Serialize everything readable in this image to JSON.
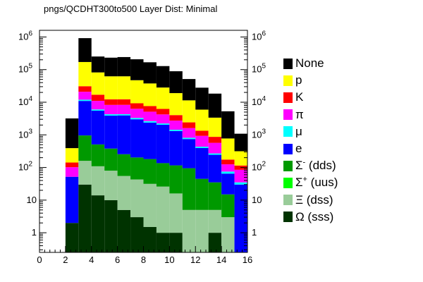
{
  "chart_data": {
    "type": "bar",
    "stacked": true,
    "title": "pngs/QCDHT300to500 Layer Dist: Minimal",
    "xlabel": "",
    "ylabel": "",
    "xlim": [
      0,
      16
    ],
    "ylim": [
      0.25,
      1600000
    ],
    "y_scale": "log",
    "bin_edges": [
      0,
      1,
      2,
      3,
      4,
      5,
      6,
      7,
      8,
      9,
      10,
      11,
      12,
      13,
      14,
      15,
      16
    ],
    "x_ticks": [
      "0",
      "2",
      "4",
      "6",
      "8",
      "10",
      "12",
      "14",
      "16"
    ],
    "y_ticks": [
      "1",
      "10",
      "10^2",
      "10^3",
      "10^4",
      "10^5",
      "10^6"
    ],
    "legend_position": "right",
    "series": [
      {
        "name": "Ω (sss)",
        "label_main": "Ω (sss)",
        "label_sup": "",
        "label_rest": "",
        "color": "#003300",
        "values": [
          0,
          0,
          2,
          30,
          14,
          10,
          5,
          3,
          1.5,
          1,
          1,
          0,
          0,
          1,
          0,
          0
        ]
      },
      {
        "name": "Ξ (dss)",
        "label_main": "Ξ (dss)",
        "label_sup": "",
        "label_rest": "",
        "color": "#99cc99",
        "values": [
          0,
          0,
          0,
          130,
          95,
          70,
          50,
          40,
          30,
          25,
          15,
          5,
          5,
          4,
          3,
          0
        ]
      },
      {
        "name": "Σ+ (uus)",
        "label_main": "Σ",
        "label_sup": "+",
        "label_rest": " (uus)",
        "color": "#00ff00",
        "values": [
          0,
          0,
          0,
          0,
          0,
          0,
          0,
          0,
          0,
          0,
          0,
          0,
          0,
          0,
          0,
          0
        ]
      },
      {
        "name": "Σ- (dds)",
        "label_main": "Σ",
        "label_sup": "-",
        "label_rest": " (dds)",
        "color": "#009900",
        "values": [
          0,
          0,
          0,
          800,
          400,
          300,
          200,
          160,
          150,
          110,
          100,
          90,
          40,
          30,
          12,
          0
        ]
      },
      {
        "name": "e",
        "label_main": "e",
        "label_sup": "",
        "label_rest": "",
        "color": "#0000ff",
        "values": [
          0,
          0,
          50,
          10000,
          5000,
          3500,
          3700,
          2800,
          2200,
          1900,
          1200,
          650,
          350,
          210,
          50,
          30
        ]
      },
      {
        "name": "μ",
        "label_main": "μ",
        "label_sup": "",
        "label_rest": "",
        "color": "#00ffff",
        "values": [
          0,
          0,
          0,
          1000,
          500,
          400,
          350,
          300,
          250,
          200,
          120,
          70,
          40,
          25,
          10,
          5
        ]
      },
      {
        "name": "π",
        "label_main": "π",
        "label_sup": "",
        "label_rest": "",
        "color": "#ff00ff",
        "values": [
          0,
          0,
          50,
          9000,
          5000,
          4000,
          4000,
          3000,
          2500,
          2000,
          1300,
          800,
          500,
          300,
          50,
          50
        ]
      },
      {
        "name": "K",
        "label_main": "K",
        "label_sup": "",
        "label_rest": "",
        "color": "#ff0000",
        "values": [
          0,
          0,
          40,
          10000,
          6000,
          4000,
          4000,
          3000,
          2500,
          2000,
          1300,
          800,
          400,
          300,
          50,
          30
        ]
      },
      {
        "name": "p",
        "label_main": "p",
        "label_sup": "",
        "label_rest": "",
        "color": "#ffff00",
        "values": [
          0,
          0,
          250,
          140000,
          65000,
          50000,
          50000,
          38000,
          30000,
          22000,
          15000,
          9000,
          4600,
          2500,
          600,
          200
        ]
      },
      {
        "name": "None",
        "label_main": "None",
        "label_sup": "",
        "label_rest": "",
        "color": "#000000",
        "values": [
          0,
          0,
          2800,
          750000,
          170000,
          170000,
          180000,
          160000,
          130000,
          100000,
          70000,
          40000,
          22000,
          15000,
          4500,
          770
        ]
      }
    ]
  }
}
